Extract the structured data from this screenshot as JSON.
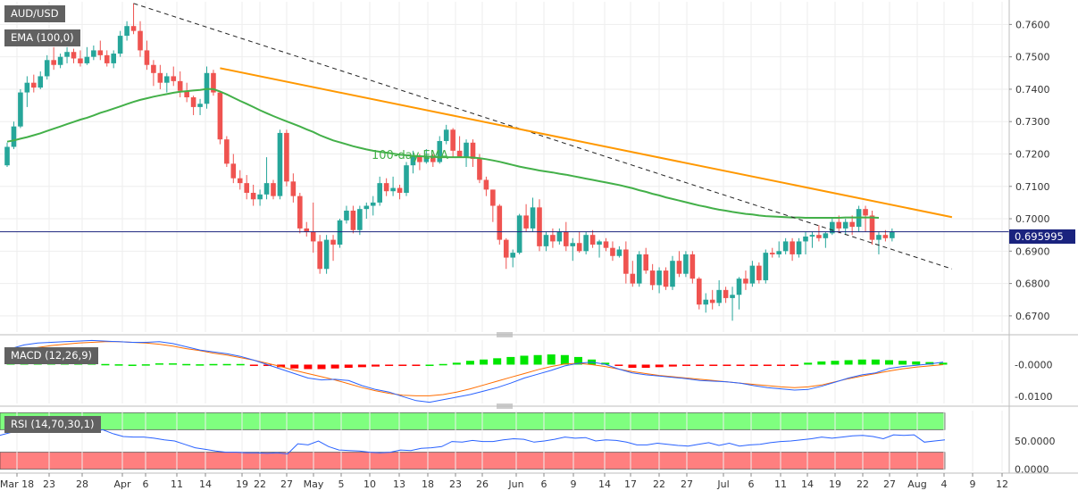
{
  "labels": {
    "symbol": "AUD/USD",
    "ema_indicator": "EMA (100,0)",
    "ema_annotation": "100-day EMA",
    "macd_indicator": "MACD (12,26,9)",
    "rsi_indicator": "RSI (14,70,30,1)",
    "last_price": "0.695995"
  },
  "colors": {
    "bull": "#26a69a",
    "bear": "#ef5350",
    "ema": "#43b049",
    "trendline": "#ff9800",
    "macd_line": "#2962ff",
    "signal_line": "#ff6d00",
    "hist_pos": "#00e600",
    "hist_neg": "#ff0000",
    "rsi_line": "#2962ff",
    "rsi_overbought_zone": "#7fff7f",
    "rsi_oversold_zone": "#ff7f7f",
    "tag_bg": "#616161",
    "price_line": "#1a237e"
  },
  "chart_data": {
    "type": "candlestick",
    "x_tick_labels": [
      "Mar 18",
      "23",
      "28",
      "Apr",
      "6",
      "11",
      "14",
      "19",
      "22",
      "27",
      "May",
      "5",
      "10",
      "13",
      "18",
      "23",
      "26",
      "Jun",
      "6",
      "9",
      "14",
      "17",
      "22",
      "27",
      "Jul",
      "6",
      "11",
      "14",
      "19",
      "22",
      "27",
      "Aug",
      "4",
      "9",
      "12"
    ],
    "price_axis": {
      "ticks": [
        "0.7600",
        "0.7500",
        "0.7400",
        "0.7300",
        "0.7200",
        "0.7100",
        "0.7000",
        "0.6900",
        "0.6800",
        "0.6700"
      ],
      "range": [
        0.665,
        0.767
      ]
    },
    "macd_axis": {
      "ticks": [
        "-0.0000",
        "-0.0100"
      ],
      "range": [
        -0.0122,
        0.0077
      ]
    },
    "rsi_axis": {
      "ticks": [
        "50.0000",
        "0.0000"
      ],
      "range": [
        -4,
        104
      ],
      "overbought": 70,
      "oversold": 30
    },
    "ohlc": [
      [
        0.7165,
        0.7235,
        0.716,
        0.7222
      ],
      [
        0.7222,
        0.73,
        0.7215,
        0.7285
      ],
      [
        0.7285,
        0.74,
        0.728,
        0.739
      ],
      [
        0.739,
        0.744,
        0.7345,
        0.742
      ],
      [
        0.742,
        0.7445,
        0.739,
        0.7405
      ],
      [
        0.7405,
        0.7455,
        0.74,
        0.744
      ],
      [
        0.744,
        0.7505,
        0.743,
        0.749
      ],
      [
        0.749,
        0.753,
        0.746,
        0.7475
      ],
      [
        0.7475,
        0.751,
        0.7465,
        0.75
      ],
      [
        0.75,
        0.753,
        0.748,
        0.7515
      ],
      [
        0.7515,
        0.7525,
        0.748,
        0.7495
      ],
      [
        0.7495,
        0.752,
        0.747,
        0.748
      ],
      [
        0.748,
        0.753,
        0.7475,
        0.75
      ],
      [
        0.75,
        0.7535,
        0.749,
        0.752
      ],
      [
        0.752,
        0.755,
        0.749,
        0.7505
      ],
      [
        0.7505,
        0.752,
        0.747,
        0.748
      ],
      [
        0.748,
        0.752,
        0.7465,
        0.751
      ],
      [
        0.751,
        0.758,
        0.75,
        0.7565
      ],
      [
        0.7565,
        0.761,
        0.755,
        0.7595
      ],
      [
        0.7595,
        0.7665,
        0.757,
        0.758
      ],
      [
        0.758,
        0.761,
        0.75,
        0.752
      ],
      [
        0.752,
        0.755,
        0.746,
        0.7475
      ],
      [
        0.7475,
        0.749,
        0.741,
        0.745
      ],
      [
        0.745,
        0.7475,
        0.74,
        0.742
      ],
      [
        0.742,
        0.745,
        0.739,
        0.744
      ],
      [
        0.744,
        0.747,
        0.741,
        0.7425
      ],
      [
        0.7425,
        0.7455,
        0.7375,
        0.7395
      ],
      [
        0.7395,
        0.742,
        0.736,
        0.7375
      ],
      [
        0.7375,
        0.738,
        0.732,
        0.7345
      ],
      [
        0.7345,
        0.737,
        0.732,
        0.7355
      ],
      [
        0.7355,
        0.747,
        0.734,
        0.745
      ],
      [
        0.745,
        0.746,
        0.738,
        0.739
      ],
      [
        0.739,
        0.7395,
        0.723,
        0.7245
      ],
      [
        0.7245,
        0.7255,
        0.716,
        0.717
      ],
      [
        0.717,
        0.72,
        0.711,
        0.7125
      ],
      [
        0.7125,
        0.715,
        0.709,
        0.711
      ],
      [
        0.711,
        0.7135,
        0.706,
        0.708
      ],
      [
        0.708,
        0.7105,
        0.704,
        0.706
      ],
      [
        0.706,
        0.709,
        0.704,
        0.7075
      ],
      [
        0.7075,
        0.719,
        0.706,
        0.711
      ],
      [
        0.711,
        0.712,
        0.706,
        0.707
      ],
      [
        0.707,
        0.7275,
        0.706,
        0.7265
      ],
      [
        0.7265,
        0.7275,
        0.71,
        0.7115
      ],
      [
        0.7115,
        0.714,
        0.705,
        0.707
      ],
      [
        0.707,
        0.708,
        0.6955,
        0.697
      ],
      [
        0.697,
        0.699,
        0.6945,
        0.696
      ],
      [
        0.696,
        0.705,
        0.6895,
        0.693
      ],
      [
        0.693,
        0.695,
        0.683,
        0.6845
      ],
      [
        0.6845,
        0.695,
        0.683,
        0.6935
      ],
      [
        0.6935,
        0.695,
        0.687,
        0.692
      ],
      [
        0.692,
        0.7,
        0.691,
        0.6995
      ],
      [
        0.6995,
        0.704,
        0.6985,
        0.7025
      ],
      [
        0.7025,
        0.704,
        0.6955,
        0.6965
      ],
      [
        0.6965,
        0.704,
        0.695,
        0.703
      ],
      [
        0.703,
        0.705,
        0.7,
        0.704
      ],
      [
        0.704,
        0.707,
        0.701,
        0.705
      ],
      [
        0.705,
        0.713,
        0.704,
        0.711
      ],
      [
        0.711,
        0.7125,
        0.707,
        0.7085
      ],
      [
        0.7085,
        0.713,
        0.707,
        0.7095
      ],
      [
        0.7095,
        0.7105,
        0.706,
        0.708
      ],
      [
        0.708,
        0.7175,
        0.707,
        0.7165
      ],
      [
        0.7165,
        0.721,
        0.714,
        0.7195
      ],
      [
        0.7195,
        0.72,
        0.715,
        0.7175
      ],
      [
        0.7175,
        0.7215,
        0.717,
        0.7195
      ],
      [
        0.7195,
        0.72,
        0.716,
        0.7175
      ],
      [
        0.7175,
        0.7255,
        0.717,
        0.724
      ],
      [
        0.724,
        0.729,
        0.723,
        0.7275
      ],
      [
        0.7275,
        0.728,
        0.719,
        0.721
      ],
      [
        0.721,
        0.7255,
        0.719,
        0.719
      ],
      [
        0.719,
        0.7245,
        0.716,
        0.7235
      ],
      [
        0.7235,
        0.7245,
        0.716,
        0.7185
      ],
      [
        0.7185,
        0.72,
        0.711,
        0.712
      ],
      [
        0.712,
        0.713,
        0.707,
        0.709
      ],
      [
        0.709,
        0.709,
        0.699,
        0.704
      ],
      [
        0.704,
        0.7045,
        0.692,
        0.6935
      ],
      [
        0.6935,
        0.694,
        0.6845,
        0.688
      ],
      [
        0.688,
        0.6905,
        0.685,
        0.6895
      ],
      [
        0.6895,
        0.7015,
        0.689,
        0.701
      ],
      [
        0.701,
        0.7045,
        0.696,
        0.697
      ],
      [
        0.697,
        0.7065,
        0.696,
        0.7035
      ],
      [
        0.7035,
        0.706,
        0.69,
        0.6915
      ],
      [
        0.6915,
        0.696,
        0.69,
        0.695
      ],
      [
        0.695,
        0.697,
        0.691,
        0.693
      ],
      [
        0.693,
        0.697,
        0.692,
        0.696
      ],
      [
        0.696,
        0.699,
        0.69,
        0.6915
      ],
      [
        0.6915,
        0.694,
        0.687,
        0.6925
      ],
      [
        0.6925,
        0.696,
        0.6895,
        0.69
      ],
      [
        0.69,
        0.696,
        0.689,
        0.695
      ],
      [
        0.695,
        0.6965,
        0.691,
        0.692
      ],
      [
        0.692,
        0.6935,
        0.688,
        0.693
      ],
      [
        0.693,
        0.694,
        0.69,
        0.691
      ],
      [
        0.691,
        0.693,
        0.687,
        0.6885
      ],
      [
        0.6885,
        0.6915,
        0.688,
        0.6905
      ],
      [
        0.6905,
        0.693,
        0.68,
        0.683
      ],
      [
        0.683,
        0.687,
        0.679,
        0.68
      ],
      [
        0.68,
        0.69,
        0.679,
        0.689
      ],
      [
        0.689,
        0.691,
        0.683,
        0.684
      ],
      [
        0.684,
        0.686,
        0.678,
        0.6795
      ],
      [
        0.6795,
        0.685,
        0.677,
        0.684
      ],
      [
        0.684,
        0.685,
        0.678,
        0.679
      ],
      [
        0.679,
        0.6885,
        0.678,
        0.687
      ],
      [
        0.687,
        0.69,
        0.682,
        0.683
      ],
      [
        0.683,
        0.69,
        0.682,
        0.689
      ],
      [
        0.689,
        0.69,
        0.68,
        0.6815
      ],
      [
        0.6815,
        0.682,
        0.672,
        0.6735
      ],
      [
        0.6735,
        0.677,
        0.671,
        0.675
      ],
      [
        0.675,
        0.678,
        0.672,
        0.674
      ],
      [
        0.674,
        0.681,
        0.673,
        0.678
      ],
      [
        0.678,
        0.679,
        0.674,
        0.6755
      ],
      [
        0.6755,
        0.679,
        0.6685,
        0.6765
      ],
      [
        0.6765,
        0.682,
        0.672,
        0.6815
      ],
      [
        0.6815,
        0.684,
        0.678,
        0.68
      ],
      [
        0.68,
        0.687,
        0.679,
        0.6855
      ],
      [
        0.6855,
        0.6865,
        0.68,
        0.681
      ],
      [
        0.681,
        0.6905,
        0.68,
        0.6895
      ],
      [
        0.6895,
        0.691,
        0.688,
        0.689
      ],
      [
        0.689,
        0.693,
        0.688,
        0.69
      ],
      [
        0.69,
        0.694,
        0.689,
        0.693
      ],
      [
        0.693,
        0.694,
        0.687,
        0.689
      ],
      [
        0.689,
        0.694,
        0.688,
        0.693
      ],
      [
        0.693,
        0.696,
        0.689,
        0.6945
      ],
      [
        0.6945,
        0.696,
        0.691,
        0.695
      ],
      [
        0.695,
        0.698,
        0.693,
        0.694
      ],
      [
        0.694,
        0.696,
        0.691,
        0.6955
      ],
      [
        0.6955,
        0.7,
        0.695,
        0.699
      ],
      [
        0.699,
        0.701,
        0.6955,
        0.697
      ],
      [
        0.697,
        0.7,
        0.695,
        0.699
      ],
      [
        0.699,
        0.701,
        0.695,
        0.6975
      ],
      [
        0.6975,
        0.704,
        0.696,
        0.703
      ],
      [
        0.703,
        0.704,
        0.696,
        0.701
      ],
      [
        0.701,
        0.7025,
        0.692,
        0.6935
      ],
      [
        0.6935,
        0.696,
        0.689,
        0.695
      ],
      [
        0.695,
        0.6965,
        0.693,
        0.694
      ],
      [
        0.694,
        0.697,
        0.693,
        0.696
      ]
    ],
    "ema_100": [
      0.7238,
      0.7242,
      0.7247,
      0.7252,
      0.7258,
      0.7264,
      0.7271,
      0.7278,
      0.7285,
      0.7292,
      0.7299,
      0.7306,
      0.7312,
      0.7319,
      0.7327,
      0.7333,
      0.734,
      0.7347,
      0.7354,
      0.7361,
      0.7367,
      0.7372,
      0.7377,
      0.7381,
      0.7385,
      0.7389,
      0.7392,
      0.7394,
      0.7396,
      0.7398,
      0.7401,
      0.74,
      0.7393,
      0.7384,
      0.7374,
      0.7364,
      0.7355,
      0.7345,
      0.7335,
      0.7326,
      0.7317,
      0.7309,
      0.7301,
      0.7293,
      0.7285,
      0.7276,
      0.7268,
      0.7258,
      0.725,
      0.7242,
      0.7236,
      0.723,
      0.7224,
      0.7219,
      0.7214,
      0.721,
      0.7207,
      0.7204,
      0.7201,
      0.7198,
      0.7196,
      0.7194,
      0.7193,
      0.7192,
      0.7191,
      0.719,
      0.719,
      0.719,
      0.719,
      0.719,
      0.7189,
      0.7187,
      0.7184,
      0.718,
      0.7176,
      0.7171,
      0.7166,
      0.7161,
      0.7157,
      0.7153,
      0.7149,
      0.7146,
      0.7143,
      0.7139,
      0.7136,
      0.7132,
      0.7128,
      0.7124,
      0.712,
      0.7116,
      0.7112,
      0.7108,
      0.7104,
      0.7099,
      0.7094,
      0.7088,
      0.7083,
      0.7077,
      0.7072,
      0.7066,
      0.7061,
      0.7056,
      0.7051,
      0.7046,
      0.7041,
      0.7037,
      0.7032,
      0.7028,
      0.7025,
      0.7021,
      0.7018,
      0.7015,
      0.7013,
      0.701,
      0.7008,
      0.7007,
      0.7006,
      0.7005,
      0.7004,
      0.7004,
      0.7003,
      0.7003,
      0.7003,
      0.7003,
      0.7003,
      0.7003,
      0.7004,
      0.7004,
      0.7004,
      0.7004,
      0.7004,
      0.7003
    ],
    "resistance_trendline": {
      "from": [
        0.7665,
        19
      ],
      "to": [
        0.6845,
        142
      ]
    },
    "orange_trendline": {
      "from": [
        0.7465,
        32
      ],
      "to": [
        0.7005,
        142
      ]
    },
    "macd": {
      "macd_line": [
        0.005,
        0.0062,
        0.0068,
        0.007,
        0.0072,
        0.0074,
        0.0076,
        0.0074,
        0.0072,
        0.007,
        0.007,
        0.0072,
        0.0066,
        0.0056,
        0.0046,
        0.004,
        0.0034,
        0.0026,
        0.0014,
        0.0,
        -0.0014,
        -0.0028,
        -0.0042,
        -0.0048,
        -0.0046,
        -0.005,
        -0.0066,
        -0.0078,
        -0.0086,
        -0.01,
        -0.0113,
        -0.0118,
        -0.011,
        -0.0102,
        -0.0094,
        -0.0083,
        -0.0072,
        -0.0058,
        -0.0042,
        -0.003,
        -0.0018,
        -0.0004,
        0.0004,
        0.0008,
        0.0001,
        -0.0014,
        -0.0026,
        -0.0032,
        -0.0036,
        -0.004,
        -0.0044,
        -0.005,
        -0.0052,
        -0.0054,
        -0.0058,
        -0.0066,
        -0.0072,
        -0.0076,
        -0.008,
        -0.0078,
        -0.0068,
        -0.0055,
        -0.0042,
        -0.0032,
        -0.0026,
        -0.0012,
        -0.0006,
        -0.0002,
        0.0002,
        0.0008
      ],
      "signal_line": [
        0.004,
        0.0048,
        0.0054,
        0.006,
        0.0064,
        0.0068,
        0.007,
        0.0072,
        0.0072,
        0.007,
        0.0068,
        0.0064,
        0.0058,
        0.005,
        0.0044,
        0.0036,
        0.003,
        0.0022,
        0.0014,
        0.0004,
        -0.0006,
        -0.0018,
        -0.0028,
        -0.0038,
        -0.0048,
        -0.006,
        -0.0072,
        -0.0082,
        -0.009,
        -0.0096,
        -0.0098,
        -0.0098,
        -0.0094,
        -0.0086,
        -0.0076,
        -0.0064,
        -0.0052,
        -0.004,
        -0.0028,
        -0.0016,
        -0.0006,
        0.0002,
        0.0004,
        0.0,
        -0.0006,
        -0.0014,
        -0.0022,
        -0.0028,
        -0.0034,
        -0.0038,
        -0.0042,
        -0.0046,
        -0.005,
        -0.0054,
        -0.0058,
        -0.0062,
        -0.0066,
        -0.007,
        -0.0072,
        -0.007,
        -0.0064,
        -0.0054,
        -0.0044,
        -0.0036,
        -0.0028,
        -0.002,
        -0.0013,
        -0.0008,
        -0.0004,
        0.0
      ],
      "histogram": [
        0.0006,
        0.0008,
        0.0008,
        0.0006,
        0.0005,
        0.0004,
        0.0004,
        0.0002,
        0.0001,
        0.0,
        0.0001,
        0.0004,
        0.0004,
        0.0002,
        0.0001,
        0.0002,
        0.0002,
        0.0002,
        -0.0001,
        -0.0004,
        -0.0008,
        -0.0012,
        -0.0014,
        -0.0014,
        -0.0012,
        -0.001,
        -0.0008,
        -0.0006,
        -0.0004,
        -0.0004,
        -0.0002,
        0.0,
        0.0002,
        0.0006,
        0.0012,
        0.0016,
        0.002,
        0.0024,
        0.0028,
        0.003,
        0.0032,
        0.003,
        0.0024,
        0.0016,
        0.0006,
        -0.0004,
        -0.001,
        -0.001,
        -0.0008,
        -0.0006,
        -0.0004,
        -0.0004,
        -0.0004,
        -0.0004,
        -0.0002,
        -0.0002,
        -0.0002,
        -0.0001,
        -0.0001,
        0.0006,
        0.001,
        0.0012,
        0.0014,
        0.0016,
        0.0016,
        0.0014,
        0.0012,
        0.001,
        0.0008,
        0.0006
      ]
    },
    "rsi": [
      60,
      65,
      68,
      68,
      70,
      70,
      69,
      67,
      68,
      66,
      70,
      63,
      58,
      57,
      57,
      55,
      52,
      50,
      44,
      38,
      35,
      32,
      30,
      30,
      29,
      29,
      28,
      29,
      27,
      45,
      43,
      50,
      40,
      34,
      33,
      32,
      30,
      29,
      30,
      34,
      33,
      37,
      38,
      40,
      49,
      48,
      51,
      49,
      49,
      52,
      54,
      53,
      48,
      50,
      53,
      57,
      55,
      56,
      50,
      52,
      51,
      48,
      43,
      43,
      46,
      44,
      42,
      41,
      44,
      47,
      42,
      46,
      41,
      43,
      44,
      47,
      49,
      50,
      52,
      54,
      57,
      55,
      57,
      59,
      60,
      58,
      54,
      61,
      60,
      61,
      48,
      50,
      52
    ]
  }
}
